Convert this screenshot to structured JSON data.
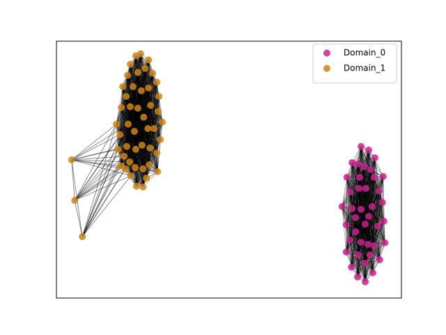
{
  "chart_data": {
    "type": "network",
    "legend": "upper right",
    "xlim": [
      0,
      100
    ],
    "ylim": [
      0,
      100
    ],
    "series": [
      {
        "name": "Domain_0",
        "color": "#c8238f",
        "x": [
          88.3,
          90.5,
          85.7,
          87.3,
          92.3,
          89.1,
          91.1,
          84.2,
          87.9,
          92.1,
          94.7,
          85.1,
          87.7,
          89.7,
          93.5,
          82.8,
          85.7,
          88.3,
          91.5,
          94.5,
          86.7,
          90.5,
          84.0,
          89.5,
          93.1,
          94.9,
          86.7,
          85.1,
          88.3,
          90.3,
          92.1,
          95.2,
          84.0,
          87.5,
          90.9,
          93.7,
          89.5,
          85.5,
          87.3,
          91.7,
          89.5
        ],
        "y": [
          59.0,
          57.6,
          52.7,
          52.2,
          54.6,
          51.1,
          50.0,
          47.0,
          47.0,
          47.0,
          47.3,
          41.3,
          42.7,
          42.7,
          41.6,
          35.6,
          34.8,
          34.5,
          35.6,
          37.2,
          31.3,
          31.8,
          28.5,
          28.8,
          28.0,
          29.9,
          25.8,
          22.6,
          21.7,
          20.9,
          20.4,
          21.5,
          17.9,
          16.8,
          16.8,
          14.9,
          13.6,
          12.0,
          8.2,
          9.8,
          6.3
        ]
      },
      {
        "name": "Domain_1",
        "color": "#cc8418",
        "x": [
          23.0,
          24.4,
          26.7,
          21.4,
          23.6,
          25.7,
          27.9,
          20.6,
          29.1,
          19.2,
          22.2,
          26.7,
          24.6,
          29.7,
          20.2,
          18.8,
          21.4,
          23.6,
          27.3,
          29.5,
          25.3,
          20.8,
          30.7,
          17.4,
          26.5,
          28.3,
          22.6,
          18.4,
          30.1,
          20.4,
          23.0,
          24.8,
          27.1,
          29.1,
          17.8,
          19.6,
          21.2,
          26.9,
          18.6,
          22.8,
          25.1,
          20.0,
          29.3,
          21.6,
          26.1,
          23.2,
          25.1,
          4.4,
          5.3,
          7.5
        ],
        "y": [
          94.3,
          95.1,
          92.7,
          91.0,
          87.8,
          89.4,
          87.5,
          86.7,
          84.0,
          82.3,
          82.3,
          81.8,
          80.7,
          78.5,
          78.5,
          74.2,
          74.5,
          73.9,
          75.0,
          72.6,
          70.4,
          67.7,
          68.5,
          67.7,
          66.0,
          66.0,
          64.9,
          63.6,
          61.7,
          59.0,
          57.9,
          59.5,
          58.4,
          56.5,
          57.9,
          55.2,
          53.0,
          51.9,
          51.4,
          50.8,
          50.3,
          50.3,
          49.2,
          47.6,
          46.7,
          43.5,
          43.2,
          53.8,
          38.0,
          23.9
        ]
      }
    ]
  }
}
